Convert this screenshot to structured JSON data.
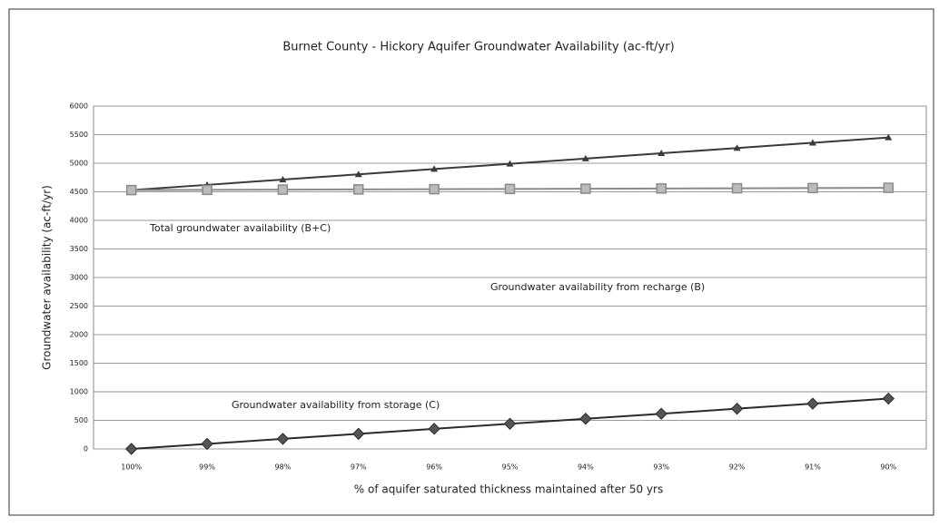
{
  "chart_data": {
    "type": "line",
    "title": "Burnet County - Hickory Aquifer Groundwater Availability (ac-ft/yr)",
    "x_label": "% of aquifer saturated thickness maintained after 50 yrs",
    "y_label": "Groundwater availability (ac-ft/yr)",
    "categories": [
      "100%",
      "99%",
      "98%",
      "97%",
      "96%",
      "95%",
      "94%",
      "93%",
      "92%",
      "91%",
      "90%"
    ],
    "series": [
      {
        "name": "Total groundwater availability (B+C)",
        "color": "#3a3a3a",
        "marker": "triangle",
        "values": [
          4530,
          4622,
          4714,
          4806,
          4898,
          4990,
          5082,
          5174,
          5266,
          5358,
          5450
        ]
      },
      {
        "name": "Groundwater availability from recharge (B)",
        "color": "#8a8a8a",
        "marker": "square",
        "values": [
          4530,
          4534,
          4538,
          4542,
          4546,
          4550,
          4554,
          4558,
          4562,
          4566,
          4570
        ]
      },
      {
        "name": "Groundwater availability from storage (C)",
        "color": "#2a2a2a",
        "marker": "diamond",
        "values": [
          0,
          88,
          176,
          264,
          352,
          440,
          528,
          616,
          704,
          792,
          880
        ]
      }
    ],
    "ylim": [
      0,
      6000
    ],
    "yticks": [
      0,
      500,
      1000,
      1500,
      2000,
      2500,
      3000,
      3500,
      4000,
      4500,
      5000,
      5500,
      6000
    ],
    "grid": true
  }
}
